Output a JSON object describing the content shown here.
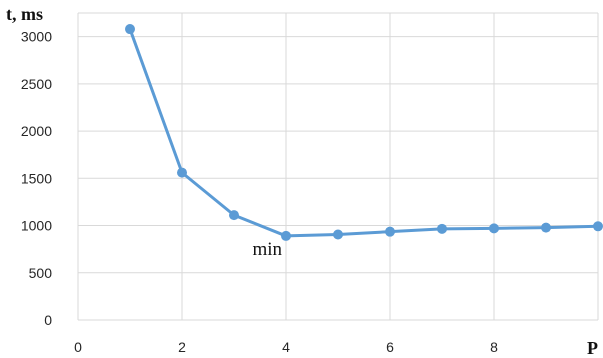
{
  "chart_data": {
    "type": "line",
    "ylabel": "t, ms",
    "xlabel": "P",
    "xlim": [
      0,
      10
    ],
    "ylim": [
      0,
      3250
    ],
    "x_ticks": [
      0,
      2,
      4,
      6,
      8
    ],
    "y_ticks": [
      0,
      500,
      1000,
      1500,
      2000,
      2500,
      3000
    ],
    "grid": true,
    "series": [
      {
        "x": [
          1,
          2,
          3,
          4,
          5,
          6,
          7,
          8,
          9,
          10
        ],
        "values": [
          3080,
          1560,
          1110,
          890,
          905,
          935,
          965,
          970,
          978,
          992
        ]
      }
    ],
    "annotations": [
      {
        "text": "min",
        "x": 4,
        "y": 890
      }
    ],
    "colors": {
      "line": "#5b9bd5",
      "grid": "#d9d9d9"
    }
  }
}
